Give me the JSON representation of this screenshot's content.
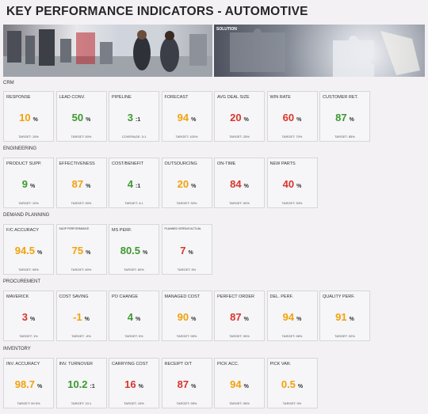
{
  "page": {
    "title": "KEY PERFORMANCE INDICATORS - AUTOMOTIVE"
  },
  "banners": {
    "right_label": "SOLUTION"
  },
  "colors": {
    "orange": "#f0a30a",
    "green": "#3a9a2e",
    "red": "#d8362c"
  },
  "sections": [
    {
      "name": "CRM",
      "tiles": [
        {
          "title": "RESPONSE",
          "value": "10",
          "unit": "%",
          "target": "TARGET: 15%",
          "status": "orange"
        },
        {
          "title": "LEAD CONV.",
          "value": "50",
          "unit": "%",
          "target": "TARGET: 50%",
          "status": "green"
        },
        {
          "title": "PIPELINE",
          "value": "3",
          "unit": ":1",
          "target": "COVERAGE: 3:1",
          "status": "green"
        },
        {
          "title": "FORECAST",
          "value": "94",
          "unit": "%",
          "target": "TARGET: 100%",
          "status": "orange"
        },
        {
          "title": "AVG DEAL SIZE",
          "value": "20",
          "unit": "%",
          "target": "TARGET: 25%",
          "status": "red"
        },
        {
          "title": "WIN RATE",
          "value": "60",
          "unit": "%",
          "target": "TARGET: 70%",
          "status": "red"
        },
        {
          "title": "CUSTOMER RET.",
          "value": "87",
          "unit": "%",
          "target": "TARGET: 85%",
          "status": "green"
        }
      ]
    },
    {
      "name": "ENGINEERING",
      "tiles": [
        {
          "title": "PRODUCT SUPP.",
          "value": "9",
          "unit": "%",
          "target": "TARGET: 10%",
          "status": "green"
        },
        {
          "title": "EFFECTIVENESS",
          "value": "87",
          "unit": "%",
          "target": "TARGET: 90%",
          "status": "orange"
        },
        {
          "title": "COST/BENEFIT",
          "value": "4",
          "unit": ":1",
          "target": "TARGET: 4:1",
          "status": "green"
        },
        {
          "title": "OUTSOURCING",
          "value": "20",
          "unit": "%",
          "target": "TARGET: 30%",
          "status": "orange"
        },
        {
          "title": "ON-TIME",
          "value": "84",
          "unit": "%",
          "target": "TARGET: 90%",
          "status": "red"
        },
        {
          "title": "NEW PARTS",
          "value": "40",
          "unit": "%",
          "target": "TARGET: 30%",
          "status": "red"
        }
      ]
    },
    {
      "name": "DEMAND PLANNING",
      "tiles": [
        {
          "title": "F/C ACCURACY",
          "value": "94.5",
          "unit": "%",
          "target": "TARGET: 95%",
          "status": "orange"
        },
        {
          "title": "S&OP PERFORMANCE",
          "small": true,
          "value": "75",
          "unit": "%",
          "target": "TARGET: 80%",
          "status": "orange"
        },
        {
          "title": "MS PERF.",
          "value": "80.5",
          "unit": "%",
          "target": "TARGET: 80%",
          "status": "green"
        },
        {
          "title": "PLANNED VERSUS ACTUAL",
          "small": true,
          "value": "7",
          "unit": "%",
          "target": "TARGET: 5%",
          "status": "red"
        }
      ]
    },
    {
      "name": "PROCUREMENT",
      "tiles": [
        {
          "title": "MAVERICK",
          "value": "3",
          "unit": "%",
          "target": "TARGET: 1%",
          "status": "red"
        },
        {
          "title": "COST SAVING",
          "value": "-1",
          "unit": "%",
          "target": "TARGET: -5%",
          "status": "orange"
        },
        {
          "title": "PO CHANGE",
          "value": "4",
          "unit": "%",
          "target": "TARGET: 5%",
          "status": "green"
        },
        {
          "title": "MANAGED COST",
          "value": "90",
          "unit": "%",
          "target": "TARGET: 95%",
          "status": "orange"
        },
        {
          "title": "PERFECT ORDER",
          "value": "87",
          "unit": "%",
          "target": "TARGET: 95%",
          "status": "red"
        },
        {
          "title": "DEL. PERF.",
          "value": "94",
          "unit": "%",
          "target": "TARGET: 98%",
          "status": "orange"
        },
        {
          "title": "QUALITY PERF.",
          "value": "91",
          "unit": "%",
          "target": "TARGET: 92%",
          "status": "orange"
        }
      ]
    },
    {
      "name": "INVENTORY",
      "tiles": [
        {
          "title": "INV. ACCURACY",
          "value": "98.7",
          "unit": "%",
          "target": "TARGET: 99.5%",
          "status": "orange"
        },
        {
          "title": "INV. TURNOVER",
          "value": "10.2",
          "unit": ":1",
          "target": "TARGET: 10:1",
          "status": "green"
        },
        {
          "title": "CARRYING COST",
          "value": "16",
          "unit": "%",
          "target": "TARGET: 15%",
          "status": "red"
        },
        {
          "title": "RECEIPT O/T",
          "value": "87",
          "unit": "%",
          "target": "TARGET: 95%",
          "status": "red"
        },
        {
          "title": "PICK ACC.",
          "value": "94",
          "unit": "%",
          "target": "TARGET: 95%",
          "status": "orange"
        },
        {
          "title": "PICK VAR.",
          "value": "0.5",
          "unit": "%",
          "target": "TARGET: 0%",
          "status": "orange"
        }
      ]
    }
  ]
}
